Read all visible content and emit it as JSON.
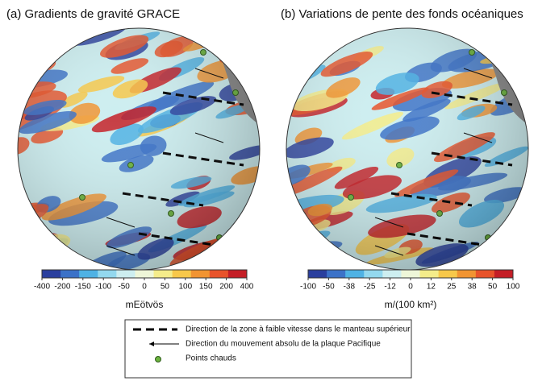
{
  "panels": [
    {
      "title": "(a) Gradients de gravité GRACE",
      "colorbar_ticks": [
        "-400",
        "-200",
        "-150",
        "-100",
        "-50",
        "0",
        "50",
        "100",
        "150",
        "200",
        "400"
      ],
      "unit": "mEötvös"
    },
    {
      "title": "(b) Variations de pente des fonds océaniques",
      "colorbar_ticks": [
        "-100",
        "-50",
        "-38",
        "-25",
        "-12",
        "0",
        "12",
        "25",
        "38",
        "50",
        "100"
      ],
      "unit": "m/(100 km²)"
    }
  ],
  "colorbar_colors": [
    "#2a3f9e",
    "#3c72c8",
    "#4fb2e4",
    "#93d8ee",
    "#cdeef0",
    "#eef6d8",
    "#f4ec8a",
    "#f7c84a",
    "#f19432",
    "#e8532a",
    "#c41e26"
  ],
  "legend": [
    {
      "label": "Direction de la zone à faible vitesse dans le manteau supérieur"
    },
    {
      "label": "Direction du mouvement absolu de la plaque Pacifique"
    },
    {
      "label": "Points chauds"
    }
  ]
}
